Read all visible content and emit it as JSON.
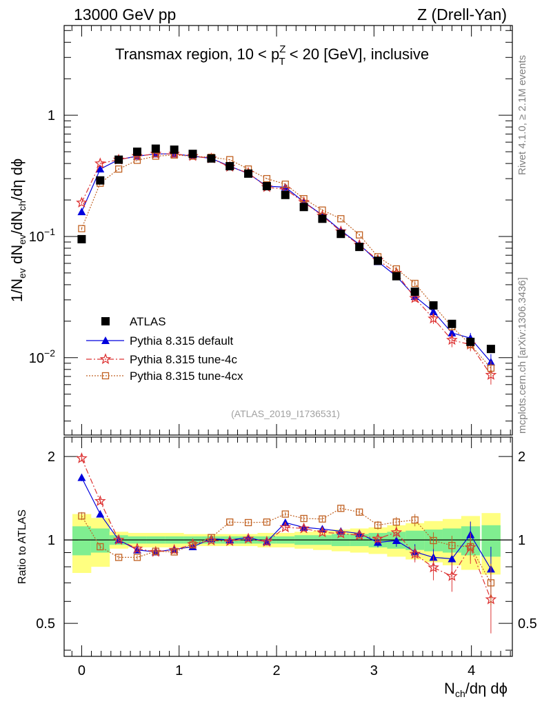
{
  "header": {
    "left": "13000 GeV pp",
    "right": "Z (Drell-Yan)"
  },
  "side_labels": {
    "rivet": "Rivet 4.1.0, ≥ 2.1M events",
    "mcplots": "mcplots.cern.ch [arXiv:1306.3436]"
  },
  "chart_data": {
    "type": "scatter",
    "title": "Transmax region, 10 < pTZ < 20 [GeV], inclusive",
    "title_parts": {
      "prefix": "Transmax region, 10 < p",
      "sup": "Z",
      "sub": "T",
      "suffix": " < 20 [GeV], inclusive"
    },
    "analysis_id": "(ATLAS_2019_I1736531)",
    "xlabel": "Nch/dη dϕ",
    "ylabel": "1/Nev dNev/dNch/dη dϕ",
    "ratio_ylabel": "Ratio to ATLAS",
    "xlim": [
      -0.18,
      4.42
    ],
    "ylim": [
      0.0023,
      5.5
    ],
    "yscale": "log",
    "ratio_ylim": [
      0.38,
      2.35
    ],
    "x_ticks": [
      "0",
      "1",
      "2",
      "3",
      "4"
    ],
    "y_ticks": [
      "10−2",
      "10−1",
      "1"
    ],
    "ratio_ticks": [
      "0.5",
      "1",
      "2"
    ],
    "legend_position": "lower-left",
    "x": [
      0.0,
      0.19,
      0.38,
      0.57,
      0.76,
      0.95,
      1.14,
      1.33,
      1.52,
      1.71,
      1.9,
      2.09,
      2.28,
      2.47,
      2.66,
      2.85,
      3.04,
      3.23,
      3.42,
      3.61,
      3.8,
      3.99,
      4.2
    ],
    "bin_halfwidth": 0.095,
    "series": [
      {
        "name": "ATLAS",
        "color": "#000000",
        "marker": "square-filled",
        "line": "none",
        "values": [
          0.095,
          0.29,
          0.43,
          0.5,
          0.53,
          0.52,
          0.48,
          0.44,
          0.38,
          0.33,
          0.26,
          0.22,
          0.175,
          0.14,
          0.105,
          0.082,
          0.063,
          0.047,
          0.035,
          0.027,
          0.019,
          0.0135,
          0.0118
        ],
        "band_green": [
          0.12,
          0.1,
          0.04,
          0.03,
          0.03,
          0.03,
          0.03,
          0.03,
          0.03,
          0.03,
          0.03,
          0.03,
          0.04,
          0.04,
          0.05,
          0.05,
          0.06,
          0.07,
          0.08,
          0.09,
          0.1,
          0.12,
          0.13
        ],
        "band_yellow": [
          0.24,
          0.2,
          0.07,
          0.06,
          0.06,
          0.06,
          0.05,
          0.05,
          0.05,
          0.05,
          0.06,
          0.06,
          0.07,
          0.08,
          0.09,
          0.1,
          0.11,
          0.13,
          0.15,
          0.17,
          0.19,
          0.22,
          0.25
        ]
      },
      {
        "name": "Pythia 8.315 default",
        "color": "#0000dd",
        "marker": "triangle-filled",
        "line": "solid",
        "values": [
          0.16,
          0.36,
          0.43,
          0.46,
          0.48,
          0.48,
          0.46,
          0.44,
          0.38,
          0.33,
          0.26,
          0.255,
          0.193,
          0.15,
          0.112,
          0.086,
          0.062,
          0.047,
          0.032,
          0.024,
          0.016,
          0.0145,
          0.0092
        ],
        "errors": [
          0.003,
          0.004,
          0.004,
          0.004,
          0.004,
          0.004,
          0.004,
          0.004,
          0.004,
          0.003,
          0.003,
          0.003,
          0.003,
          0.003,
          0.002,
          0.002,
          0.002,
          0.0015,
          0.0015,
          0.0015,
          0.0012,
          0.0015,
          0.0015
        ]
      },
      {
        "name": "Pythia 8.315 tune-4c",
        "color": "#dd3333",
        "marker": "star-open",
        "line": "dash-dot",
        "values": [
          0.19,
          0.4,
          0.43,
          0.46,
          0.48,
          0.48,
          0.46,
          0.44,
          0.375,
          0.335,
          0.255,
          0.245,
          0.192,
          0.148,
          0.11,
          0.085,
          0.064,
          0.05,
          0.031,
          0.021,
          0.014,
          0.0128,
          0.0072
        ],
        "errors": [
          0.004,
          0.005,
          0.004,
          0.004,
          0.004,
          0.004,
          0.004,
          0.004,
          0.004,
          0.003,
          0.003,
          0.003,
          0.003,
          0.003,
          0.002,
          0.002,
          0.002,
          0.002,
          0.002,
          0.002,
          0.0018,
          0.0015,
          0.0012
        ]
      },
      {
        "name": "Pythia 8.315 tune-4cx",
        "color": "#c06020",
        "marker": "square-open",
        "line": "dotted",
        "values": [
          0.116,
          0.275,
          0.36,
          0.425,
          0.46,
          0.47,
          0.46,
          0.45,
          0.43,
          0.36,
          0.3,
          0.27,
          0.205,
          0.165,
          0.14,
          0.103,
          0.068,
          0.054,
          0.041,
          0.027,
          0.018,
          0.0128,
          0.0082
        ],
        "errors": [
          0.003,
          0.004,
          0.004,
          0.004,
          0.004,
          0.004,
          0.004,
          0.004,
          0.004,
          0.003,
          0.003,
          0.003,
          0.003,
          0.003,
          0.002,
          0.002,
          0.002,
          0.002,
          0.002,
          0.0015,
          0.0013,
          0.0012,
          0.0012
        ]
      }
    ],
    "ratio_series": [
      {
        "name": "Pythia 8.315 default",
        "values": [
          1.68,
          1.24,
          1.0,
          0.92,
          0.905,
          0.925,
          0.945,
          1.01,
          1.0,
          1.02,
          0.985,
          1.155,
          1.11,
          1.095,
          1.075,
          1.055,
          0.98,
          0.995,
          0.905,
          0.865,
          0.855,
          1.045,
          0.785
        ],
        "errors": [
          0.05,
          0.03,
          0.02,
          0.015,
          0.015,
          0.015,
          0.015,
          0.015,
          0.015,
          0.015,
          0.02,
          0.02,
          0.025,
          0.025,
          0.03,
          0.03,
          0.04,
          0.05,
          0.06,
          0.07,
          0.08,
          0.12,
          0.16
        ]
      },
      {
        "name": "Pythia 8.315 tune-4c",
        "values": [
          1.97,
          1.38,
          1.0,
          0.93,
          0.905,
          0.92,
          0.965,
          0.995,
          0.99,
          1.01,
          0.985,
          1.11,
          1.1,
          1.065,
          1.055,
          1.04,
          1.01,
          1.065,
          0.89,
          0.795,
          0.74,
          0.94,
          0.61
        ],
        "errors": [
          0.05,
          0.03,
          0.02,
          0.015,
          0.015,
          0.015,
          0.015,
          0.015,
          0.015,
          0.015,
          0.02,
          0.02,
          0.025,
          0.025,
          0.03,
          0.03,
          0.04,
          0.05,
          0.06,
          0.08,
          0.09,
          0.12,
          0.15
        ]
      },
      {
        "name": "Pythia 8.315 tune-4cx",
        "values": [
          1.22,
          0.945,
          0.865,
          0.865,
          0.91,
          0.905,
          0.96,
          1.02,
          1.16,
          1.155,
          1.16,
          1.24,
          1.195,
          1.19,
          1.3,
          1.26,
          1.13,
          1.16,
          1.18,
          0.995,
          0.955,
          0.945,
          0.7
        ],
        "errors": [
          0.04,
          0.02,
          0.015,
          0.015,
          0.015,
          0.015,
          0.015,
          0.015,
          0.015,
          0.015,
          0.02,
          0.02,
          0.025,
          0.025,
          0.03,
          0.03,
          0.04,
          0.05,
          0.06,
          0.07,
          0.08,
          0.1,
          0.12
        ]
      }
    ]
  }
}
